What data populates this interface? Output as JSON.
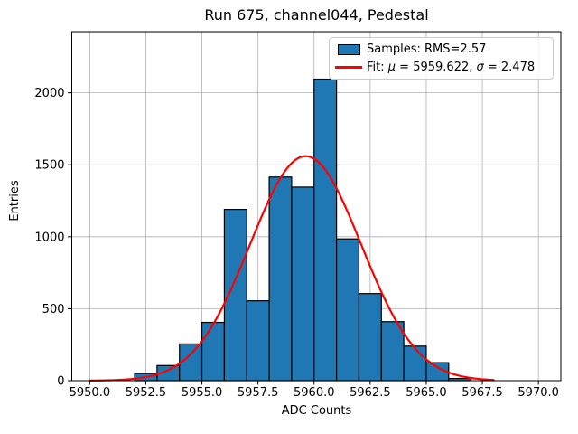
{
  "chart_data": {
    "type": "histogram",
    "title": "Run 675, channel044, Pedestal",
    "xlabel": "ADC Counts",
    "ylabel": "Entries",
    "xlim": [
      5949.2,
      5971.0
    ],
    "ylim": [
      0,
      2425
    ],
    "grid": true,
    "legend_position": "upper right",
    "x_ticks": [
      5950.0,
      5952.5,
      5955.0,
      5957.5,
      5960.0,
      5962.5,
      5965.0,
      5967.5,
      5970.0
    ],
    "x_tick_labels": [
      "5950.0",
      "5952.5",
      "5955.0",
      "5957.5",
      "5960.0",
      "5962.5",
      "5965.0",
      "5967.5",
      "5970.0"
    ],
    "y_ticks": [
      0,
      500,
      1000,
      1500,
      2000
    ],
    "y_tick_labels": [
      "0",
      "500",
      "1000",
      "1500",
      "2000"
    ],
    "bin_width": 1,
    "bin_left_edges": [
      5952,
      5953,
      5954,
      5955,
      5956,
      5957,
      5958,
      5959,
      5960,
      5961,
      5962,
      5963,
      5964,
      5965,
      5966
    ],
    "counts": [
      50,
      105,
      255,
      405,
      1190,
      555,
      1415,
      1345,
      2095,
      985,
      605,
      410,
      240,
      125,
      15
    ],
    "bar_color": "#1f77b4",
    "bar_edge_color": "#000000",
    "grid_color": "#b0b0b0",
    "fit": {
      "mu": 5959.622,
      "sigma": 2.478,
      "amplitude": 1560,
      "x_start": 5950.0,
      "x_end": 5968.0,
      "color": "#ff0000"
    },
    "legend": {
      "samples_label": "Samples: RMS=2.57",
      "fit_prefix": "Fit: ",
      "fit_mu_symbol": "μ",
      "fit_mu_value": " = 5959.622, ",
      "fit_sigma_symbol": "σ",
      "fit_sigma_value": " = 2.478"
    }
  }
}
